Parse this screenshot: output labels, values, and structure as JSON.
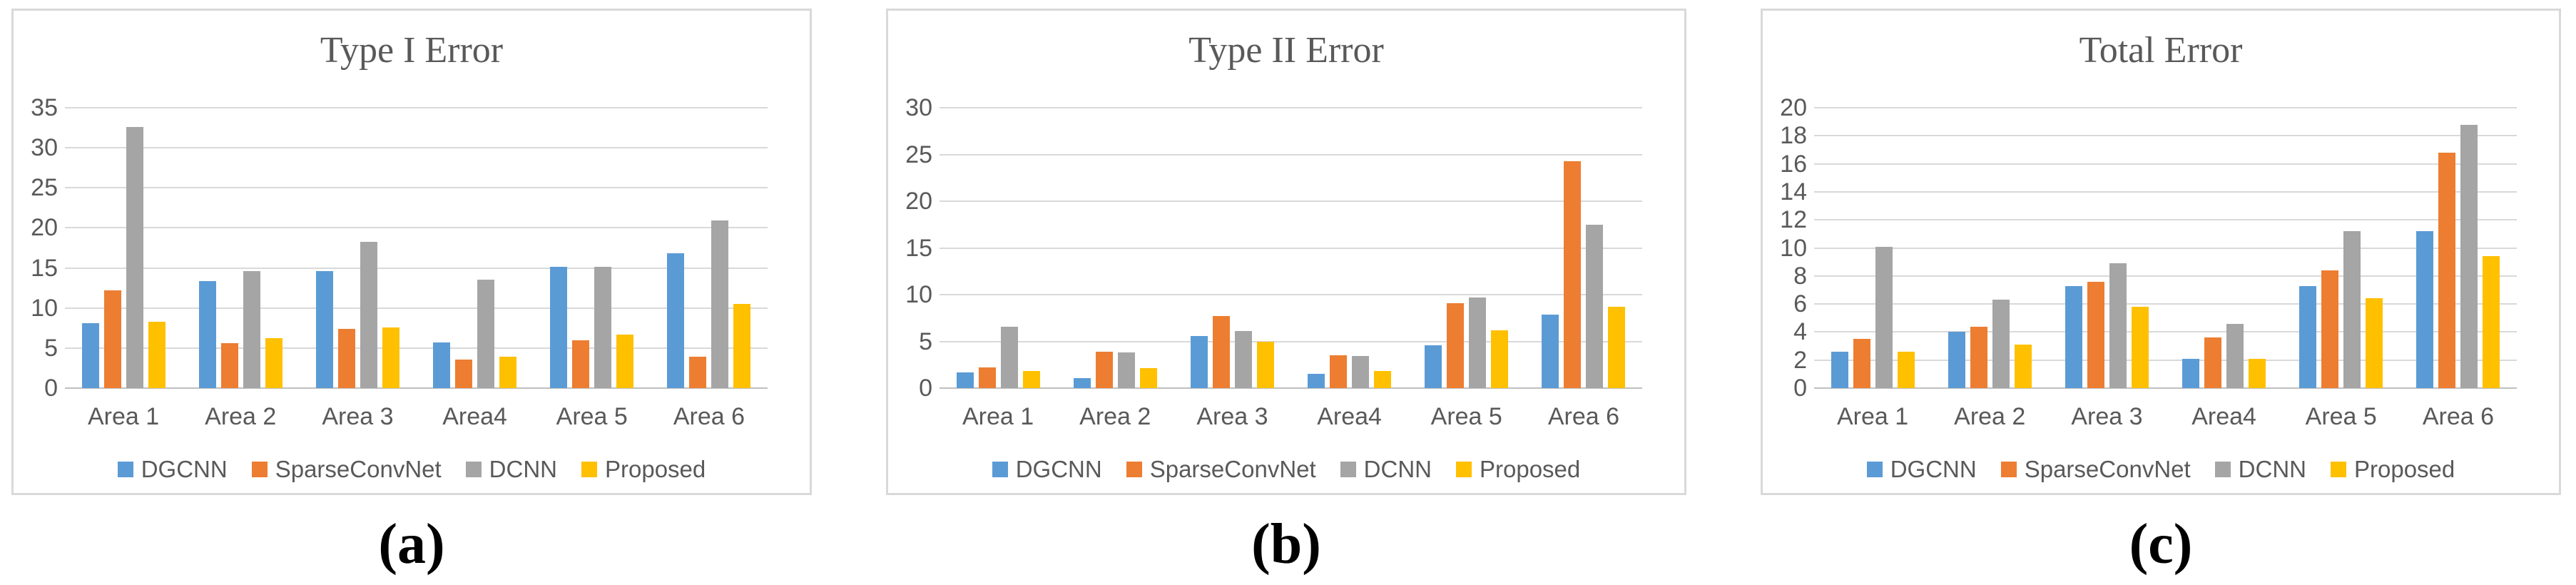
{
  "figure": {
    "background": "#ffffff",
    "panel_border_color": "#d9d9d9",
    "gridline_color": "#d9d9d9",
    "axis_line_color": "#bfbfbf",
    "text_color": "#595959",
    "sublabel_color": "#000000"
  },
  "legend": {
    "items": [
      {
        "label": "DGCNN",
        "color": "#5B9BD5",
        "icon": "legend-swatch-square"
      },
      {
        "label": "SparseConvNet",
        "color": "#ED7D31",
        "icon": "legend-swatch-square"
      },
      {
        "label": "DCNN",
        "color": "#A5A5A5",
        "icon": "legend-swatch-square"
      },
      {
        "label": "Proposed",
        "color": "#FFC000",
        "icon": "legend-swatch-square"
      }
    ],
    "position": "bottom"
  },
  "chart_data": [
    {
      "type": "bar",
      "title": "Type I Error",
      "sub_label": "(a)",
      "categories": [
        "Area 1",
        "Area 2",
        "Area 3",
        "Area4",
        "Area 5",
        "Area 6"
      ],
      "series": [
        {
          "name": "DGCNN",
          "color": "#5B9BD5",
          "values": [
            8.1,
            13.4,
            14.6,
            5.7,
            15.1,
            16.8
          ]
        },
        {
          "name": "SparseConvNet",
          "color": "#ED7D31",
          "values": [
            12.2,
            5.6,
            7.4,
            3.6,
            6.0,
            3.9
          ]
        },
        {
          "name": "DCNN",
          "color": "#A5A5A5",
          "values": [
            32.6,
            14.6,
            18.3,
            13.5,
            15.1,
            20.9
          ]
        },
        {
          "name": "Proposed",
          "color": "#FFC000",
          "values": [
            8.3,
            6.2,
            7.6,
            3.9,
            6.7,
            10.5
          ]
        }
      ],
      "xlabel": "",
      "ylabel": "",
      "ylim": [
        0,
        35
      ],
      "ytick_step": 5,
      "yticks": [
        0,
        5,
        10,
        15,
        20,
        25,
        30,
        35
      ],
      "grid": true,
      "legend_position": "bottom"
    },
    {
      "type": "bar",
      "title": "Type II Error",
      "sub_label": "(b)",
      "categories": [
        "Area 1",
        "Area 2",
        "Area 3",
        "Area4",
        "Area 5",
        "Area 6"
      ],
      "series": [
        {
          "name": "DGCNN",
          "color": "#5B9BD5",
          "values": [
            1.7,
            1.1,
            5.6,
            1.5,
            4.6,
            7.9
          ]
        },
        {
          "name": "SparseConvNet",
          "color": "#ED7D31",
          "values": [
            2.2,
            3.9,
            7.7,
            3.5,
            9.1,
            24.3
          ]
        },
        {
          "name": "DCNN",
          "color": "#A5A5A5",
          "values": [
            6.6,
            3.8,
            6.1,
            3.4,
            9.7,
            17.5
          ]
        },
        {
          "name": "Proposed",
          "color": "#FFC000",
          "values": [
            1.8,
            2.1,
            5.0,
            1.8,
            6.2,
            8.7
          ]
        }
      ],
      "xlabel": "",
      "ylabel": "",
      "ylim": [
        0,
        30
      ],
      "ytick_step": 5,
      "yticks": [
        0,
        5,
        10,
        15,
        20,
        25,
        30
      ],
      "grid": true,
      "legend_position": "bottom"
    },
    {
      "type": "bar",
      "title": "Total Error",
      "sub_label": "(c)",
      "categories": [
        "Area 1",
        "Area 2",
        "Area 3",
        "Area4",
        "Area 5",
        "Area 6"
      ],
      "series": [
        {
          "name": "DGCNN",
          "color": "#5B9BD5",
          "values": [
            2.6,
            4.0,
            7.3,
            2.1,
            7.3,
            11.2
          ]
        },
        {
          "name": "SparseConvNet",
          "color": "#ED7D31",
          "values": [
            3.5,
            4.4,
            7.6,
            3.6,
            8.4,
            16.8
          ]
        },
        {
          "name": "DCNN",
          "color": "#A5A5A5",
          "values": [
            10.1,
            6.3,
            8.9,
            4.6,
            11.2,
            18.8
          ]
        },
        {
          "name": "Proposed",
          "color": "#FFC000",
          "values": [
            2.6,
            3.1,
            5.8,
            2.1,
            6.4,
            9.4
          ]
        }
      ],
      "xlabel": "",
      "ylabel": "",
      "ylim": [
        0,
        20
      ],
      "ytick_step": 2,
      "yticks": [
        0,
        2,
        4,
        6,
        8,
        10,
        12,
        14,
        16,
        18,
        20
      ],
      "grid": true,
      "legend_position": "bottom"
    }
  ]
}
